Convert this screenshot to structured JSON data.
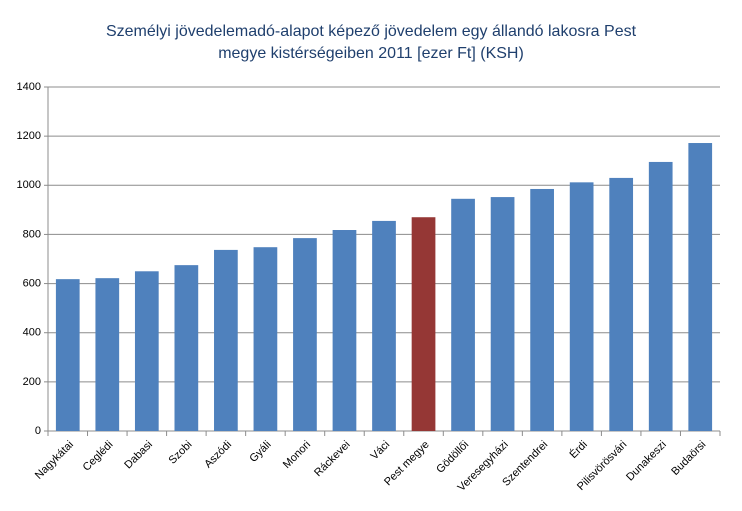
{
  "chart_data": {
    "type": "bar",
    "title": [
      "Személyi jövedelemadó-alapot képező jövedelem egy állandó lakosra Pest",
      "megye kistérségeiben 2011 [ezer Ft] (KSH)"
    ],
    "categories": [
      "Nagykátai",
      "Ceglédi",
      "Dabasi",
      "Szobi",
      "Aszódi",
      "Gyáli",
      "Monori",
      "Ráckevei",
      "Váci",
      "Pest megye",
      "Gödöllői",
      "Veresegyházi",
      "Szentendrei",
      "Érdi",
      "Pilisvörösvári",
      "Dunakeszi",
      "Budaörsi"
    ],
    "values": [
      618,
      622,
      650,
      675,
      737,
      748,
      785,
      818,
      855,
      870,
      945,
      952,
      985,
      1012,
      1030,
      1095,
      1172
    ],
    "colors": [
      "#4f81bd",
      "#4f81bd",
      "#4f81bd",
      "#4f81bd",
      "#4f81bd",
      "#4f81bd",
      "#4f81bd",
      "#4f81bd",
      "#4f81bd",
      "#953735",
      "#4f81bd",
      "#4f81bd",
      "#4f81bd",
      "#4f81bd",
      "#4f81bd",
      "#4f81bd",
      "#4f81bd"
    ],
    "ylim": [
      0,
      1400
    ],
    "yticks": [
      0,
      200,
      400,
      600,
      800,
      1000,
      1200,
      1400
    ],
    "grid": true
  }
}
